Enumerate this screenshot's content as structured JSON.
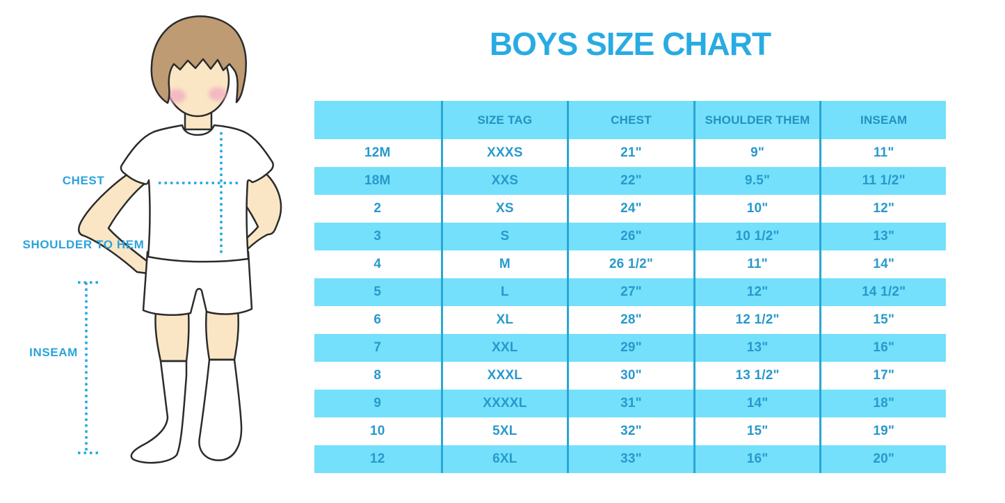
{
  "title": "BOYS SIZE CHART",
  "figure_labels": {
    "chest": "CHEST",
    "shoulder_to_hem": "SHOULDER TO HEM",
    "inseam": "INSEAM"
  },
  "chart_data": {
    "type": "table",
    "title": "BOYS SIZE CHART",
    "columns": [
      "",
      "SIZE TAG",
      "CHEST",
      "SHOULDER THEM",
      "INSEAM"
    ],
    "rows": [
      [
        "12M",
        "XXXS",
        "21\"",
        "9\"",
        "11\""
      ],
      [
        "18M",
        "XXS",
        "22\"",
        "9.5\"",
        "11 1/2\""
      ],
      [
        "2",
        "XS",
        "24\"",
        "10\"",
        "12\""
      ],
      [
        "3",
        "S",
        "26\"",
        "10 1/2\"",
        "13\""
      ],
      [
        "4",
        "M",
        "26 1/2\"",
        "11\"",
        "14\""
      ],
      [
        "5",
        "L",
        "27\"",
        "12\"",
        "14 1/2\""
      ],
      [
        "6",
        "XL",
        "28\"",
        "12 1/2\"",
        "15\""
      ],
      [
        "7",
        "XXL",
        "29\"",
        "13\"",
        "16\""
      ],
      [
        "8",
        "XXXL",
        "30\"",
        "13 1/2\"",
        "17\""
      ],
      [
        "9",
        "XXXXL",
        "31\"",
        "14\"",
        "18\""
      ],
      [
        "10",
        "5XL",
        "32\"",
        "15\"",
        "19\""
      ],
      [
        "12",
        "6XL",
        "33\"",
        "16\"",
        "20\""
      ]
    ],
    "layout": {
      "stripe_start": "white",
      "stripe_alt": "cyan",
      "outer_border": false
    }
  },
  "colors": {
    "accent_blue": "#29ABE2",
    "table_fill_cyan": "#74E0FB",
    "table_divider": "#29A6D4",
    "header_text": "#2491BF",
    "cell_text": "#2799CB",
    "label_blue": "#29A3DC",
    "skin": "#FAE6C5",
    "hair": "#BE9B72",
    "blush": "#F2AFC1",
    "outline": "#2B2B2B",
    "dotted_line": "#1CA8E0"
  }
}
